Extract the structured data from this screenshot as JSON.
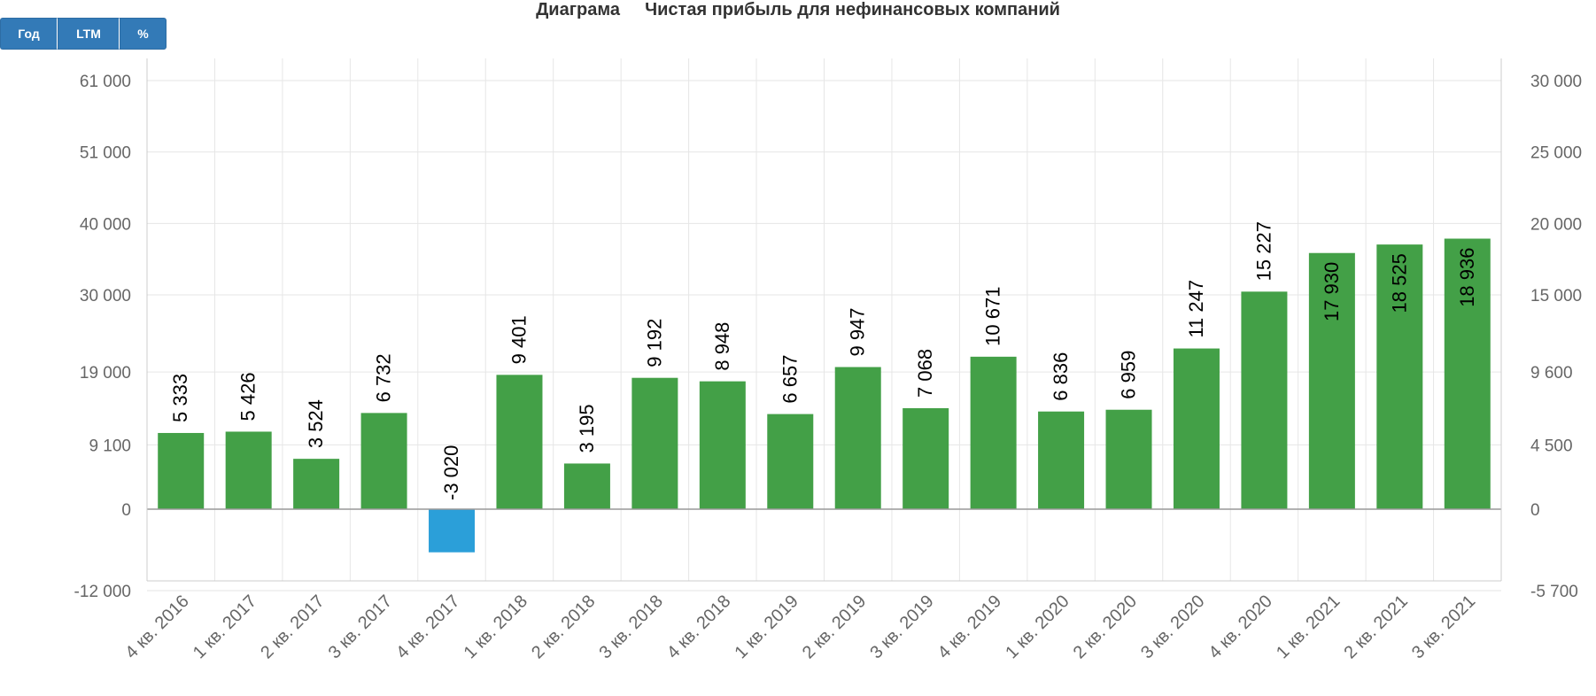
{
  "toolbar": {
    "buttons": [
      {
        "label": "Год"
      },
      {
        "label": "LTM"
      },
      {
        "label": "%"
      }
    ]
  },
  "title": {
    "prefix": "Диаграма",
    "text": "Чистая прибыль для нефинансовых компаний"
  },
  "colors": {
    "positive_bar": "#43a047",
    "negative_bar": "#2b9fd9",
    "grid": "#e6e6e6",
    "axis_text": "#666666"
  },
  "chart_data": {
    "type": "bar",
    "title": "Чистая прибыль для нефинансовых компаний",
    "categories": [
      "4 кв. 2016",
      "1 кв. 2017",
      "2 кв. 2017",
      "3 кв. 2017",
      "4 кв. 2017",
      "1 кв. 2018",
      "2 кв. 2018",
      "3 кв. 2018",
      "4 кв. 2018",
      "1 кв. 2019",
      "2 кв. 2019",
      "3 кв. 2019",
      "4 кв. 2019",
      "1 кв. 2020",
      "2 кв. 2020",
      "3 кв. 2020",
      "4 кв. 2020",
      "1 кв. 2021",
      "2 кв. 2021",
      "3 кв. 2021"
    ],
    "values": [
      5333,
      5426,
      3524,
      6732,
      -3020,
      9401,
      3195,
      9192,
      8948,
      6657,
      9947,
      7068,
      10671,
      6836,
      6959,
      11247,
      15227,
      17930,
      18525,
      18936
    ],
    "data_labels": [
      "5 333",
      "5 426",
      "3 524",
      "6 732",
      "-3 020",
      "9 401",
      "3 195",
      "9 192",
      "8 948",
      "6 657",
      "9 947",
      "7 068",
      "10 671",
      "6 836",
      "6 959",
      "11 247",
      "15 227",
      "17 930",
      "18 525",
      "18 936"
    ],
    "y_left_ticks": [
      "-12 000",
      "0",
      "9 100",
      "19 000",
      "30 000",
      "40 000",
      "51 000",
      "61 000"
    ],
    "y_right_ticks": [
      "-5 700",
      "0",
      "4 500",
      "9 600",
      "15 000",
      "20 000",
      "25 000",
      "30 000"
    ],
    "y_right_values": [
      -5700,
      0,
      4500,
      9600,
      15000,
      20000,
      25000,
      30000
    ],
    "grid": true
  }
}
